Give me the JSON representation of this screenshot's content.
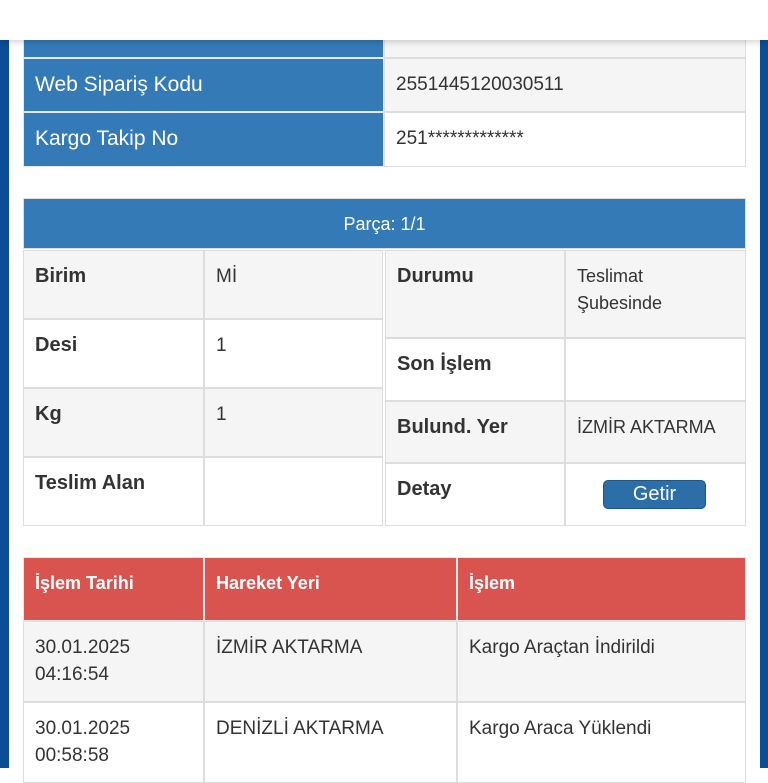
{
  "order_info": {
    "rows": [
      {
        "label": "",
        "value": ""
      },
      {
        "label": "Web Sipariş Kodu",
        "value": "2551445120030511"
      },
      {
        "label": "Kargo Takip No",
        "value": "251*************"
      }
    ]
  },
  "parca": {
    "title": "Parça: 1/1",
    "left": [
      {
        "label": "Birim",
        "value": "Mİ"
      },
      {
        "label": "Desi",
        "value": "1"
      },
      {
        "label": "Kg",
        "value": "1"
      },
      {
        "label": "Teslim Alan",
        "value": ""
      }
    ],
    "right": [
      {
        "label": "Durumu",
        "value": "Teslimat Şubesinde"
      },
      {
        "label": "Son İşlem",
        "value": ""
      },
      {
        "label": "Bulund. Yer",
        "value": "İZMİR AKTARMA"
      },
      {
        "label": "Detay",
        "button": "Getir"
      }
    ]
  },
  "movements": {
    "headers": [
      "İşlem Tarihi",
      "Hareket Yeri",
      "İşlem"
    ],
    "rows": [
      {
        "date": "30.01.2025",
        "time": "04:16:54",
        "place": "İZMİR AKTARMA",
        "action": "Kargo Araçtan İndirildi"
      },
      {
        "date": "30.01.2025",
        "time": "00:58:58",
        "place": "DENİZLİ AKTARMA",
        "action": "Kargo Araca Yüklendi"
      }
    ]
  },
  "colors": {
    "primary": "#337ab7",
    "danger": "#d9534f",
    "frame": "#0b4d97"
  }
}
